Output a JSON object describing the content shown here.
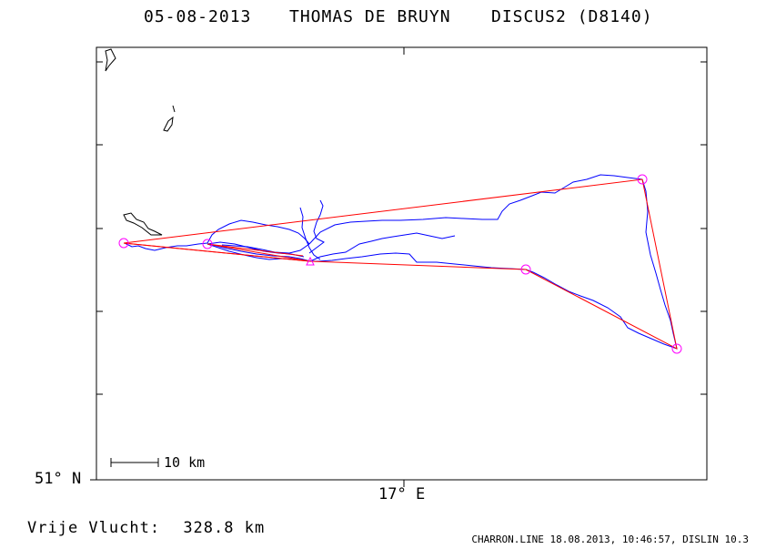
{
  "header": {
    "date": "05-08-2013",
    "pilot": "THOMAS DE BRUYN",
    "glider": "DISCUS2 (D8140)"
  },
  "axes": {
    "lat_label": "51° N",
    "lon_label": "17° E"
  },
  "scale_bar": {
    "label": "10 km"
  },
  "footer": {
    "flight_label": "Vrije Vlucht:",
    "distance": "328.8 km",
    "software": "CHARRON.LINE 18.08.2013, 10:46:57, DISLIN 10.3"
  },
  "colors": {
    "frame": "#000000",
    "track": "#0000ff",
    "task": "#ff0000",
    "turnpoint": "#ff00ff",
    "background": "#ffffff"
  },
  "icons": [
    "turnpoint-circle-icon",
    "scale-bar-icon"
  ]
}
